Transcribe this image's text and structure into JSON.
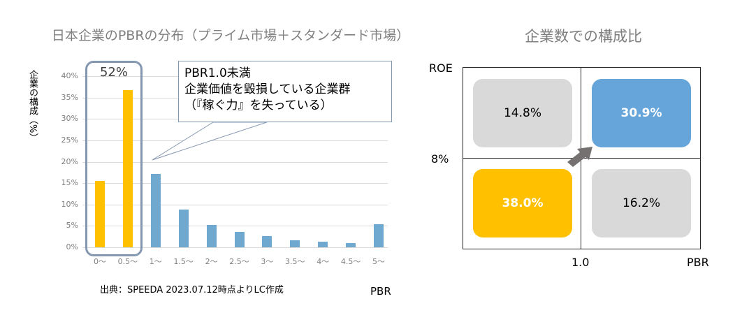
{
  "left_chart": {
    "title": "日本企業のPBRの分布（プライム市場＋スタンダード市場）",
    "ylabel": "企業の構成（%）",
    "xlabel": "PBR",
    "yticks": [
      "40%",
      "35%",
      "30%",
      "25%",
      "20%",
      "15%",
      "10%",
      "5%",
      "0%"
    ],
    "categories": [
      "0〜",
      "0.5〜",
      "1〜",
      "1.5〜",
      "2〜",
      "2.5〜",
      "3〜",
      "3.5〜",
      "4〜",
      "4.5〜",
      "5〜"
    ],
    "highlight_label": "52%",
    "callout": {
      "line1": "PBR1.0未満",
      "line2": "企業価値を毀損している企業群",
      "line3": "（『稼ぐ力』を失っている）"
    },
    "source": "出典：SPEEDA 2023.07.12時点よりLC作成",
    "colors": {
      "below_1": "#ffc000",
      "above_1": "#70a9cf",
      "highlight": "#8497b0"
    }
  },
  "right_chart": {
    "title": "企業数での構成比",
    "y_axis_label": "ROE",
    "y_threshold": "8%",
    "x_threshold": "1.0",
    "x_axis_label": "PBR",
    "quadrants": {
      "top_left": {
        "value": "14.8%",
        "color": "#d9d9d9"
      },
      "top_right": {
        "value": "30.9%",
        "color": "#65a5da"
      },
      "bottom_left": {
        "value": "38.0%",
        "color": "#ffc000"
      },
      "bottom_right": {
        "value": "16.2%",
        "color": "#d9d9d9"
      }
    },
    "arrow_color": "#767171"
  },
  "chart_data": [
    {
      "type": "bar",
      "title": "日本企業のPBRの分布（プライム市場＋スタンダード市場）",
      "xlabel": "PBR",
      "ylabel": "企業の構成（%）",
      "categories": [
        "0〜",
        "0.5〜",
        "1〜",
        "1.5〜",
        "2〜",
        "2.5〜",
        "3〜",
        "3.5〜",
        "4〜",
        "4.5〜",
        "5〜"
      ],
      "values": [
        15.5,
        36.7,
        17.1,
        8.8,
        5.2,
        3.6,
        2.6,
        1.6,
        1.3,
        1.0,
        5.4
      ],
      "ylim": [
        0,
        40
      ],
      "grid": true,
      "annotations": [
        "52% (PBR < 1.0 total)",
        "PBR1.0未満 企業価値を毀損している企業群（『稼ぐ力』を失っている）"
      ]
    },
    {
      "type": "table",
      "title": "企業数での構成比",
      "x_axis": "PBR",
      "x_threshold": 1.0,
      "y_axis": "ROE",
      "y_threshold": "8%",
      "cells": [
        {
          "pbr": "<1.0",
          "roe": ">=8%",
          "value": 14.8
        },
        {
          "pbr": ">=1.0",
          "roe": ">=8%",
          "value": 30.9
        },
        {
          "pbr": "<1.0",
          "roe": "<8%",
          "value": 38.0
        },
        {
          "pbr": ">=1.0",
          "roe": "<8%",
          "value": 16.2
        }
      ]
    }
  ]
}
